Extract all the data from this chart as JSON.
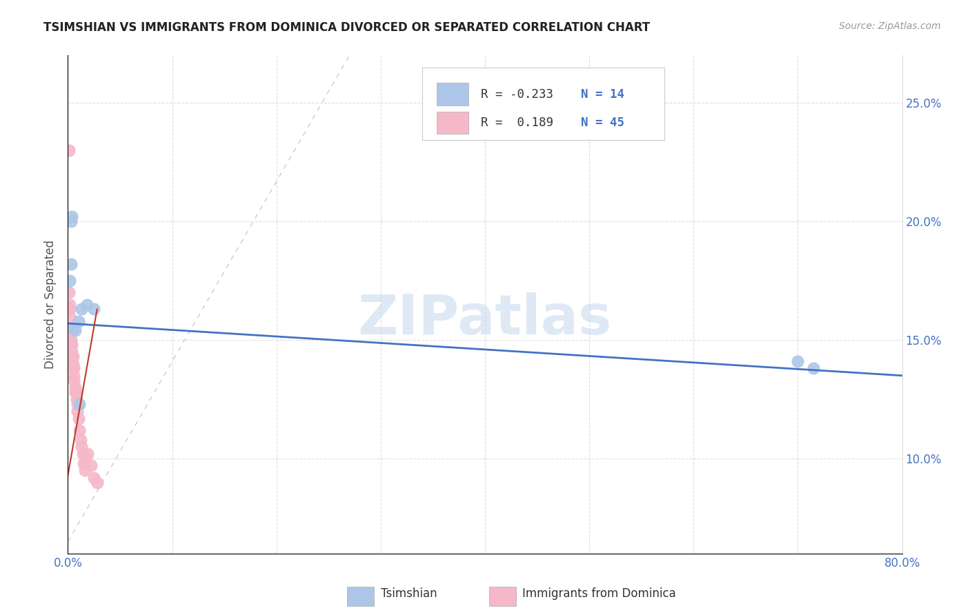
{
  "title": "TSIMSHIAN VS IMMIGRANTS FROM DOMINICA DIVORCED OR SEPARATED CORRELATION CHART",
  "source": "Source: ZipAtlas.com",
  "ylabel": "Divorced or Separated",
  "xlim": [
    0.0,
    0.8
  ],
  "ylim": [
    0.06,
    0.27
  ],
  "x_ticks": [
    0.0,
    0.1,
    0.2,
    0.3,
    0.4,
    0.5,
    0.6,
    0.7,
    0.8
  ],
  "x_tick_labels": [
    "0.0%",
    "",
    "",
    "",
    "",
    "",
    "",
    "",
    "80.0%"
  ],
  "y_ticks": [
    0.1,
    0.15,
    0.2,
    0.25
  ],
  "y_tick_labels": [
    "10.0%",
    "15.0%",
    "20.0%",
    "25.0%"
  ],
  "watermark": "ZIPatlas",
  "color_tsimshian": "#adc6e8",
  "color_dominica": "#f5b8c8",
  "color_line_tsimshian": "#4472c4",
  "color_line_dominica": "#c0392b",
  "color_diagonal": "#cccccc",
  "color_axis": "#4472c4",
  "color_tick_text": "#4472c4",
  "tsimshian_x": [
    0.002,
    0.003,
    0.004,
    0.007,
    0.01,
    0.013,
    0.018,
    0.025,
    0.7,
    0.715,
    0.003,
    0.005,
    0.011
  ],
  "tsimshian_y": [
    0.175,
    0.2,
    0.202,
    0.154,
    0.158,
    0.163,
    0.165,
    0.163,
    0.141,
    0.138,
    0.182,
    0.155,
    0.123
  ],
  "dominica_x": [
    0.001,
    0.001,
    0.002,
    0.002,
    0.002,
    0.002,
    0.003,
    0.003,
    0.003,
    0.003,
    0.004,
    0.004,
    0.004,
    0.005,
    0.005,
    0.005,
    0.006,
    0.006,
    0.006,
    0.007,
    0.007,
    0.008,
    0.008,
    0.009,
    0.009,
    0.01,
    0.011,
    0.012,
    0.013,
    0.014,
    0.015,
    0.016,
    0.017,
    0.019,
    0.022,
    0.025,
    0.028
  ],
  "dominica_y": [
    0.23,
    0.17,
    0.165,
    0.163,
    0.16,
    0.155,
    0.155,
    0.153,
    0.15,
    0.148,
    0.148,
    0.145,
    0.143,
    0.143,
    0.14,
    0.138,
    0.138,
    0.135,
    0.133,
    0.13,
    0.128,
    0.128,
    0.125,
    0.123,
    0.12,
    0.117,
    0.112,
    0.108,
    0.105,
    0.102,
    0.098,
    0.095,
    0.1,
    0.102,
    0.097,
    0.092,
    0.09
  ],
  "blue_line_x": [
    0.0,
    0.8
  ],
  "blue_line_y": [
    0.157,
    0.135
  ],
  "red_line_x": [
    0.0,
    0.028
  ],
  "red_line_y": [
    0.093,
    0.163
  ],
  "diag_line_x": [
    0.065,
    0.27
  ],
  "diag_line_y": [
    0.065,
    0.27
  ]
}
